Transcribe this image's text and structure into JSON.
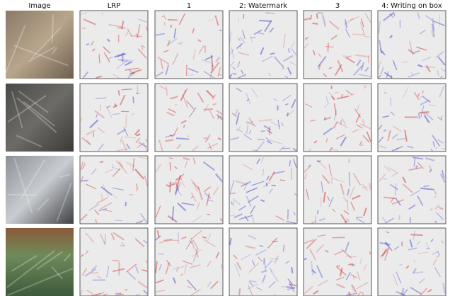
{
  "headers": [
    "Image",
    "LRP",
    "1",
    "2: Watermark",
    "3",
    "4: Writing on box"
  ]
}
